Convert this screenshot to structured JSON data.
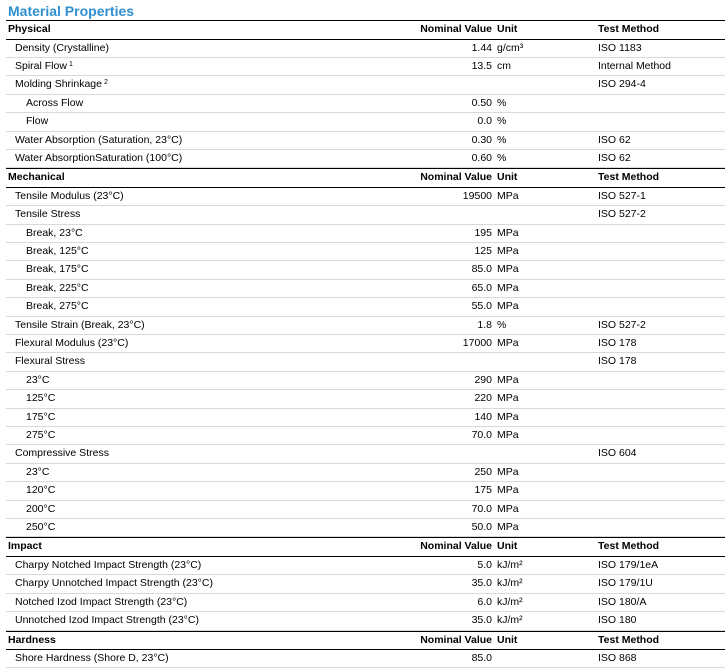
{
  "title": "Material Properties",
  "sections": [
    {
      "header": {
        "name": "Physical",
        "value": "Nominal Value",
        "unit": "Unit",
        "method": "Test Method"
      },
      "rows": [
        {
          "name": "Density (Crystalline)",
          "value": "1.44",
          "unit": "g/cm³",
          "method": "ISO 1183",
          "level": 1
        },
        {
          "name": "Spiral Flow",
          "sup": "1",
          "value": "13.5",
          "unit": "cm",
          "method": "Internal Method",
          "level": 1
        },
        {
          "name": "Molding Shrinkage",
          "sup": "2",
          "value": "",
          "unit": "",
          "method": "ISO 294-4",
          "level": 1
        },
        {
          "name": "Across Flow",
          "value": "0.50",
          "unit": "%",
          "method": "",
          "level": 2
        },
        {
          "name": "Flow",
          "value": "0.0",
          "unit": "%",
          "method": "",
          "level": 2
        },
        {
          "name": "Water Absorption (Saturation, 23°C)",
          "value": "0.30",
          "unit": "%",
          "method": "ISO 62",
          "level": 1
        },
        {
          "name": "Water AbsorptionSaturation (100°C)",
          "value": "0.60",
          "unit": "%",
          "method": "ISO 62",
          "level": 1
        }
      ]
    },
    {
      "header": {
        "name": "Mechanical",
        "value": "Nominal Value",
        "unit": "Unit",
        "method": "Test Method"
      },
      "rows": [
        {
          "name": "Tensile Modulus (23°C)",
          "value": "19500",
          "unit": "MPa",
          "method": "ISO 527-1",
          "level": 1
        },
        {
          "name": "Tensile Stress",
          "value": "",
          "unit": "",
          "method": "ISO 527-2",
          "level": 1
        },
        {
          "name": "Break, 23°C",
          "value": "195",
          "unit": "MPa",
          "method": "",
          "level": 2
        },
        {
          "name": "Break, 125°C",
          "value": "125",
          "unit": "MPa",
          "method": "",
          "level": 2
        },
        {
          "name": "Break, 175°C",
          "value": "85.0",
          "unit": "MPa",
          "method": "",
          "level": 2
        },
        {
          "name": "Break, 225°C",
          "value": "65.0",
          "unit": "MPa",
          "method": "",
          "level": 2
        },
        {
          "name": "Break, 275°C",
          "value": "55.0",
          "unit": "MPa",
          "method": "",
          "level": 2
        },
        {
          "name": "Tensile Strain (Break, 23°C)",
          "value": "1.8",
          "unit": "%",
          "method": "ISO 527-2",
          "level": 1
        },
        {
          "name": "Flexural Modulus (23°C)",
          "value": "17000",
          "unit": "MPa",
          "method": "ISO 178",
          "level": 1
        },
        {
          "name": "Flexural Stress",
          "value": "",
          "unit": "",
          "method": "ISO 178",
          "level": 1
        },
        {
          "name": "23°C",
          "value": "290",
          "unit": "MPa",
          "method": "",
          "level": 2
        },
        {
          "name": "125°C",
          "value": "220",
          "unit": "MPa",
          "method": "",
          "level": 2
        },
        {
          "name": "175°C",
          "value": "140",
          "unit": "MPa",
          "method": "",
          "level": 2
        },
        {
          "name": "275°C",
          "value": "70.0",
          "unit": "MPa",
          "method": "",
          "level": 2
        },
        {
          "name": "Compressive Stress",
          "value": "",
          "unit": "",
          "method": "ISO 604",
          "level": 1
        },
        {
          "name": "23°C",
          "value": "250",
          "unit": "MPa",
          "method": "",
          "level": 2
        },
        {
          "name": "120°C",
          "value": "175",
          "unit": "MPa",
          "method": "",
          "level": 2
        },
        {
          "name": "200°C",
          "value": "70.0",
          "unit": "MPa",
          "method": "",
          "level": 2
        },
        {
          "name": "250°C",
          "value": "50.0",
          "unit": "MPa",
          "method": "",
          "level": 2
        }
      ]
    },
    {
      "header": {
        "name": "Impact",
        "value": "Nominal Value",
        "unit": "Unit",
        "method": "Test Method"
      },
      "rows": [
        {
          "name": "Charpy Notched Impact Strength (23°C)",
          "value": "5.0",
          "unit": "kJ/m²",
          "method": "ISO 179/1eA",
          "level": 1
        },
        {
          "name": "Charpy Unnotched Impact Strength (23°C)",
          "value": "35.0",
          "unit": "kJ/m²",
          "method": "ISO 179/1U",
          "level": 1
        },
        {
          "name": "Notched Izod Impact Strength (23°C)",
          "value": "6.0",
          "unit": "kJ/m²",
          "method": "ISO 180/A",
          "level": 1
        },
        {
          "name": "Unnotched Izod Impact Strength (23°C)",
          "value": "35.0",
          "unit": "kJ/m²",
          "method": "ISO 180",
          "level": 1
        }
      ]
    },
    {
      "header": {
        "name": "Hardness",
        "value": "Nominal Value",
        "unit": "Unit",
        "method": "Test Method"
      },
      "rows": [
        {
          "name": "Shore Hardness (Shore D, 23°C)",
          "value": "85.0",
          "unit": "",
          "method": "ISO 868",
          "level": 1
        }
      ]
    }
  ]
}
